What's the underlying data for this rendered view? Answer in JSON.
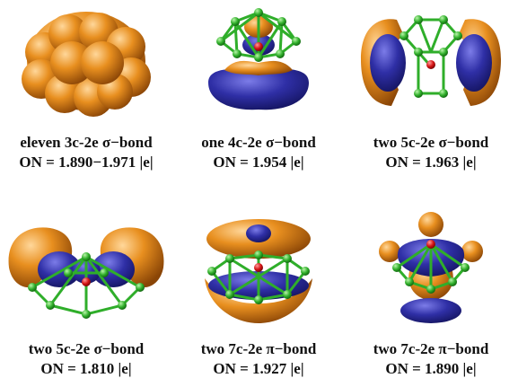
{
  "colors": {
    "orange": "#e38a1c",
    "blue": "#2d2d9c",
    "green": "#2fae2a",
    "red": "#d41414"
  },
  "panels": [
    {
      "line1": "eleven  3c-2e  σ−bond",
      "line2": "ON = 1.890−1.971 |e|"
    },
    {
      "line1": "one 4c-2e  σ−bond",
      "line2": "ON = 1.954 |e|"
    },
    {
      "line1": "two 5c-2e  σ−bond",
      "line2": "ON = 1.963 |e|"
    },
    {
      "line1": "two 5c-2e  σ−bond",
      "line2": "ON = 1.810 |e|"
    },
    {
      "line1": "two 7c-2e  π−bond",
      "line2": "ON = 1.927 |e|"
    },
    {
      "line1": "two 7c-2e  π−bond",
      "line2": "ON = 1.890 |e|"
    }
  ]
}
